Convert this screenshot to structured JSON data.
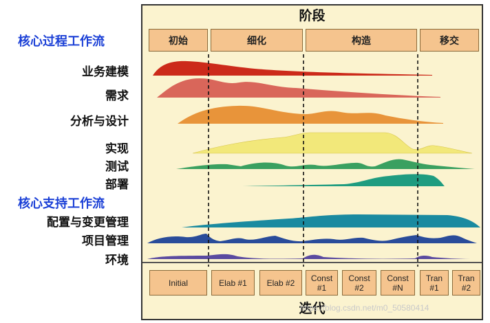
{
  "diagram": {
    "title": "阶段",
    "iteration_title": "迭代",
    "core_process_group": "核心过程工作流",
    "core_support_group": "核心支持工作流",
    "phases": [
      "初始",
      "细化",
      "构造",
      "移交"
    ],
    "process_workflows": [
      "业务建模",
      "需求",
      "分析与设计",
      "实现",
      "测试",
      "部署"
    ],
    "support_workflows": [
      "配置与变更管理",
      "项目管理",
      "环境"
    ],
    "iterations": [
      "Initial",
      "Elab #1",
      "Elab #2",
      "Const\n#1",
      "Const\n#2",
      "Const\n#N",
      "Tran\n#1",
      "Tran\n#2"
    ],
    "watermark": "https://blog.csdn.net/m0_50580414",
    "colors": {
      "frame_bg": "#fbf3cf",
      "box_fill": "#f5c48e",
      "group_label": "#1a3fd6",
      "business_modeling": "#cc2a1a",
      "requirements": "#d9665a",
      "analysis_design": "#e8943a",
      "implementation": "#f2e87a",
      "test": "#3aa060",
      "deployment": "#1f9c80",
      "config_change": "#1a8aa0",
      "project_mgmt": "#2a4c9a",
      "environment": "#5a4aa0"
    }
  }
}
